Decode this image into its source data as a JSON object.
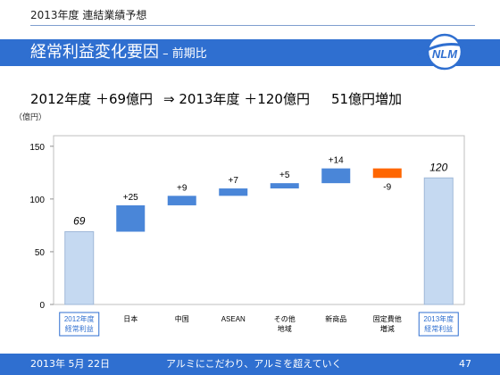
{
  "header": {
    "label": "2013年度 連結業績予想"
  },
  "title": {
    "main": "経常利益変化要因",
    "sub": " – 前期比"
  },
  "logo": {
    "text": "NLM",
    "color": "#2f6fd0"
  },
  "summary": {
    "part1": "2012年度 ＋69億円",
    "part2": "⇒ 2013年度 ＋120億円",
    "part3": "51億円増加"
  },
  "colors": {
    "accent": "#2f6fd0",
    "base_bar": "#c5d9f1",
    "increase": "#4a86d8",
    "decrease": "#ff6600",
    "border": "#9fb8d8"
  },
  "chart_data": {
    "type": "bar",
    "subtype": "waterfall",
    "unit_label": "（億円）",
    "ylim": [
      0,
      160
    ],
    "yticks": [
      0,
      50,
      100,
      150
    ],
    "grid": false,
    "categories": [
      "2012年度\n経常利益",
      "日本",
      "中国",
      "ASEAN",
      "その他\n地域",
      "新商品",
      "固定費他\n増減",
      "2013年度\n経常利益"
    ],
    "bars": [
      {
        "kind": "total",
        "start": 0,
        "end": 69,
        "label": "69",
        "highlight_label": true
      },
      {
        "kind": "increase",
        "start": 69,
        "end": 94,
        "label": "+25"
      },
      {
        "kind": "increase",
        "start": 94,
        "end": 103,
        "label": "+9"
      },
      {
        "kind": "increase",
        "start": 103,
        "end": 110,
        "label": "+7"
      },
      {
        "kind": "increase",
        "start": 110,
        "end": 115,
        "label": "+5"
      },
      {
        "kind": "increase",
        "start": 115,
        "end": 129,
        "label": "+14"
      },
      {
        "kind": "decrease",
        "start": 129,
        "end": 120,
        "label": "-9"
      },
      {
        "kind": "total",
        "start": 0,
        "end": 120,
        "label": "120",
        "highlight_label": true
      }
    ]
  },
  "footer": {
    "date": "2013年 5月 22日",
    "slogan": "アルミにこだわり、アルミを超えていく",
    "page": "47"
  }
}
